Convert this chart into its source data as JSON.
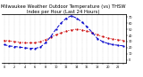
{
  "title": "Milwaukee Weather Outdoor Temperature (vs) THSW Index per Hour (Last 24 Hours)",
  "hours": [
    0,
    1,
    2,
    3,
    4,
    5,
    6,
    7,
    8,
    9,
    10,
    11,
    12,
    13,
    14,
    15,
    16,
    17,
    18,
    19,
    20,
    21,
    22,
    23
  ],
  "temp": [
    32,
    31,
    30,
    29,
    28,
    28,
    28,
    30,
    33,
    37,
    41,
    44,
    47,
    49,
    50,
    49,
    47,
    45,
    41,
    38,
    36,
    34,
    33,
    32
  ],
  "thsw": [
    25,
    23,
    22,
    21,
    20,
    19,
    19,
    21,
    28,
    38,
    50,
    60,
    68,
    72,
    68,
    62,
    54,
    45,
    35,
    30,
    27,
    25,
    24,
    23
  ],
  "temp_color": "#cc0000",
  "thsw_color": "#0000cc",
  "bg_color": "#ffffff",
  "grid_color": "#888888",
  "xlim": [
    -0.5,
    23.5
  ],
  "ylim": [
    -5,
    75
  ],
  "yticks": [
    0,
    10,
    20,
    30,
    40,
    50,
    60,
    70
  ],
  "title_fontsize": 3.8,
  "tick_fontsize": 2.5,
  "line_width": 0.7,
  "marker_size": 1.2
}
